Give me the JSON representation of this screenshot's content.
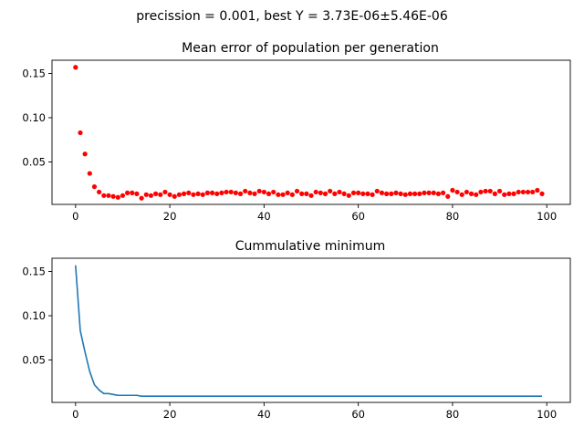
{
  "figure": {
    "suptitle": "precission = 0.001, best Y = 3.73E-06±5.46E-06"
  },
  "chart_data": [
    {
      "type": "scatter",
      "title": "Mean error of population per generation",
      "xlabel": "",
      "ylabel": "",
      "xlim": [
        -5,
        105
      ],
      "ylim": [
        0.002,
        0.165
      ],
      "xticks": [
        0,
        20,
        40,
        60,
        80,
        100
      ],
      "xtick_labels": [
        "0",
        "20",
        "40",
        "60",
        "80",
        "100"
      ],
      "yticks": [
        0.05,
        0.1,
        0.15
      ],
      "ytick_labels": [
        "0.05",
        "0.10",
        "0.15"
      ],
      "color": "#ff0000",
      "series": [
        {
          "name": "mean error",
          "x": [
            0,
            1,
            2,
            3,
            4,
            5,
            6,
            7,
            8,
            9,
            10,
            11,
            12,
            13,
            14,
            15,
            16,
            17,
            18,
            19,
            20,
            21,
            22,
            23,
            24,
            25,
            26,
            27,
            28,
            29,
            30,
            31,
            32,
            33,
            34,
            35,
            36,
            37,
            38,
            39,
            40,
            41,
            42,
            43,
            44,
            45,
            46,
            47,
            48,
            49,
            50,
            51,
            52,
            53,
            54,
            55,
            56,
            57,
            58,
            59,
            60,
            61,
            62,
            63,
            64,
            65,
            66,
            67,
            68,
            69,
            70,
            71,
            72,
            73,
            74,
            75,
            76,
            77,
            78,
            79,
            80,
            81,
            82,
            83,
            84,
            85,
            86,
            87,
            88,
            89,
            90,
            91,
            92,
            93,
            94,
            95,
            96,
            97,
            98,
            99
          ],
          "y": [
            0.157,
            0.083,
            0.059,
            0.037,
            0.022,
            0.016,
            0.012,
            0.012,
            0.011,
            0.01,
            0.012,
            0.015,
            0.015,
            0.014,
            0.009,
            0.013,
            0.012,
            0.014,
            0.013,
            0.016,
            0.013,
            0.011,
            0.013,
            0.014,
            0.015,
            0.013,
            0.014,
            0.013,
            0.015,
            0.015,
            0.014,
            0.015,
            0.016,
            0.016,
            0.015,
            0.014,
            0.017,
            0.015,
            0.014,
            0.017,
            0.016,
            0.014,
            0.016,
            0.013,
            0.013,
            0.015,
            0.013,
            0.017,
            0.014,
            0.014,
            0.012,
            0.016,
            0.015,
            0.014,
            0.017,
            0.014,
            0.016,
            0.014,
            0.012,
            0.015,
            0.015,
            0.014,
            0.014,
            0.013,
            0.017,
            0.015,
            0.014,
            0.014,
            0.015,
            0.014,
            0.013,
            0.014,
            0.014,
            0.014,
            0.015,
            0.015,
            0.015,
            0.014,
            0.015,
            0.011,
            0.018,
            0.016,
            0.013,
            0.016,
            0.014,
            0.013,
            0.016,
            0.017,
            0.017,
            0.014,
            0.017,
            0.013,
            0.014,
            0.014,
            0.016,
            0.016,
            0.016,
            0.016,
            0.018,
            0.014
          ]
        }
      ]
    },
    {
      "type": "line",
      "title": "Cummulative minimum",
      "xlabel": "",
      "ylabel": "",
      "xlim": [
        -5,
        105
      ],
      "ylim": [
        0.002,
        0.165
      ],
      "xticks": [
        0,
        20,
        40,
        60,
        80,
        100
      ],
      "xtick_labels": [
        "0",
        "20",
        "40",
        "60",
        "80",
        "100"
      ],
      "yticks": [
        0.05,
        0.1,
        0.15
      ],
      "ytick_labels": [
        "0.05",
        "0.10",
        "0.15"
      ],
      "color": "#1f77b4",
      "series": [
        {
          "name": "cumulative minimum",
          "x": [
            0,
            1,
            2,
            3,
            4,
            5,
            6,
            7,
            8,
            9,
            10,
            11,
            12,
            13,
            14,
            20,
            40,
            60,
            80,
            99
          ],
          "y": [
            0.157,
            0.083,
            0.059,
            0.037,
            0.022,
            0.016,
            0.012,
            0.012,
            0.011,
            0.01,
            0.01,
            0.01,
            0.01,
            0.01,
            0.009,
            0.009,
            0.009,
            0.009,
            0.009,
            0.009
          ]
        }
      ]
    }
  ]
}
